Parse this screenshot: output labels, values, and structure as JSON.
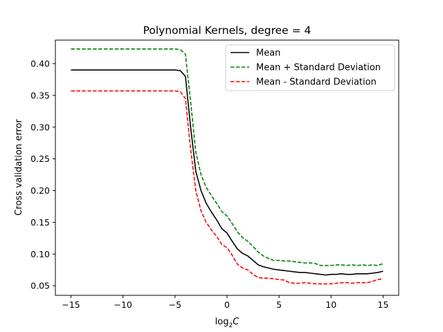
{
  "chart_data": {
    "type": "line",
    "title": "Polynomial Kernels, degree = 4",
    "xlabel_base": "log",
    "xlabel_sub": "2",
    "xlabel_var": "C",
    "ylabel": "Cross validation error",
    "xlim": [
      -16.5,
      16.5
    ],
    "ylim": [
      0.035,
      0.437
    ],
    "xticks": [
      -15,
      -10,
      -5,
      0,
      5,
      10,
      15
    ],
    "yticks": [
      0.05,
      0.1,
      0.15,
      0.2,
      0.25,
      0.3,
      0.35,
      0.4
    ],
    "legend_position": "top-right",
    "x": [
      -15,
      -14.5,
      -14,
      -13.5,
      -13,
      -12.5,
      -12,
      -11.5,
      -11,
      -10.5,
      -10,
      -9.5,
      -9,
      -8.5,
      -8,
      -7.5,
      -7,
      -6.5,
      -6,
      -5.5,
      -5,
      -4.5,
      -4,
      -3.5,
      -3,
      -2.5,
      -2,
      -1.5,
      -1,
      -0.5,
      0,
      0.5,
      1,
      1.5,
      2,
      2.5,
      3,
      3.5,
      4,
      4.5,
      5,
      5.5,
      6,
      6.5,
      7,
      7.5,
      8,
      8.5,
      9,
      9.5,
      10,
      10.5,
      11,
      11.5,
      12,
      12.5,
      13,
      13.5,
      14,
      14.5,
      15
    ],
    "series": [
      {
        "name": "Mean",
        "color": "#000000",
        "dash": "solid",
        "values": [
          0.39,
          0.39,
          0.39,
          0.39,
          0.39,
          0.39,
          0.39,
          0.39,
          0.39,
          0.39,
          0.39,
          0.39,
          0.39,
          0.39,
          0.39,
          0.39,
          0.39,
          0.39,
          0.39,
          0.39,
          0.39,
          0.389,
          0.38,
          0.3,
          0.23,
          0.2,
          0.18,
          0.166,
          0.154,
          0.14,
          0.133,
          0.12,
          0.108,
          0.101,
          0.097,
          0.09,
          0.083,
          0.08,
          0.078,
          0.076,
          0.075,
          0.074,
          0.073,
          0.072,
          0.071,
          0.071,
          0.07,
          0.069,
          0.068,
          0.067,
          0.068,
          0.068,
          0.069,
          0.068,
          0.068,
          0.069,
          0.069,
          0.069,
          0.07,
          0.071,
          0.073
        ]
      },
      {
        "name": "Mean + Standard Deviation",
        "color": "#008000",
        "dash": "dashed",
        "values": [
          0.423,
          0.423,
          0.423,
          0.423,
          0.423,
          0.423,
          0.423,
          0.423,
          0.423,
          0.423,
          0.423,
          0.423,
          0.423,
          0.423,
          0.423,
          0.423,
          0.423,
          0.423,
          0.423,
          0.423,
          0.423,
          0.422,
          0.415,
          0.34,
          0.26,
          0.225,
          0.205,
          0.192,
          0.18,
          0.167,
          0.16,
          0.148,
          0.135,
          0.126,
          0.12,
          0.112,
          0.103,
          0.097,
          0.093,
          0.09,
          0.09,
          0.089,
          0.089,
          0.088,
          0.087,
          0.086,
          0.086,
          0.085,
          0.082,
          0.082,
          0.082,
          0.083,
          0.083,
          0.082,
          0.083,
          0.082,
          0.083,
          0.082,
          0.083,
          0.082,
          0.085
        ]
      },
      {
        "name": "Mean - Standard Deviation",
        "color": "#ff0000",
        "dash": "dashed",
        "values": [
          0.357,
          0.357,
          0.357,
          0.357,
          0.357,
          0.357,
          0.357,
          0.357,
          0.357,
          0.357,
          0.357,
          0.357,
          0.357,
          0.357,
          0.357,
          0.357,
          0.357,
          0.357,
          0.357,
          0.357,
          0.357,
          0.356,
          0.345,
          0.265,
          0.2,
          0.168,
          0.15,
          0.138,
          0.128,
          0.115,
          0.11,
          0.098,
          0.084,
          0.078,
          0.075,
          0.068,
          0.063,
          0.062,
          0.062,
          0.061,
          0.06,
          0.059,
          0.055,
          0.054,
          0.054,
          0.055,
          0.054,
          0.053,
          0.053,
          0.053,
          0.053,
          0.054,
          0.055,
          0.055,
          0.054,
          0.055,
          0.055,
          0.055,
          0.057,
          0.06,
          0.061
        ]
      }
    ]
  }
}
